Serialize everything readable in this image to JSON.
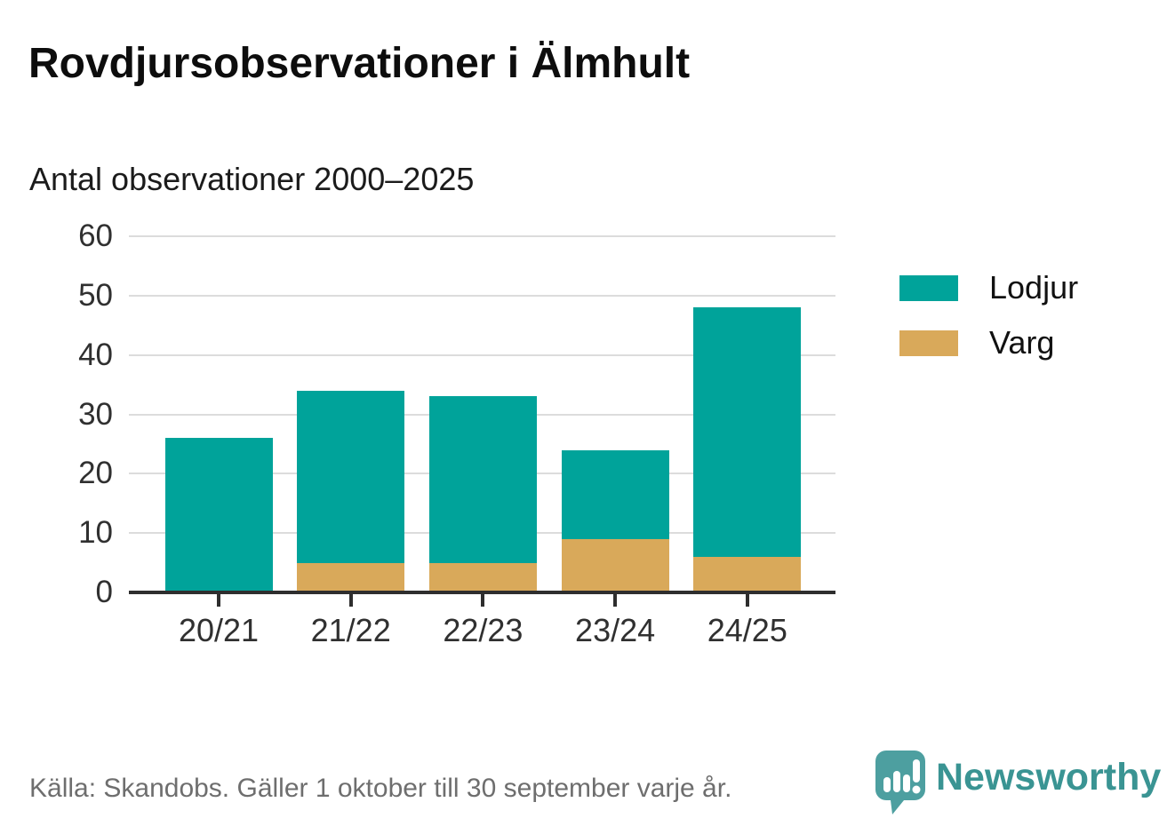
{
  "header": {
    "title": "Rovdjursobservationer i Älmhult",
    "subtitle": "Antal observationer 2000–2025"
  },
  "chart_data": {
    "type": "bar",
    "stacked": true,
    "title": "Rovdjursobservationer i Älmhult",
    "subtitle": "Antal observationer 2000–2025",
    "categories": [
      "20/21",
      "21/22",
      "22/23",
      "23/24",
      "24/25"
    ],
    "series": [
      {
        "name": "Lodjur",
        "color": "#00a39a",
        "values": [
          26,
          29,
          28,
          15,
          42
        ]
      },
      {
        "name": "Varg",
        "color": "#d9a95a",
        "values": [
          0,
          5,
          5,
          9,
          6
        ]
      }
    ],
    "stack_order_bottom_to_top": [
      "Varg",
      "Lodjur"
    ],
    "totals": [
      26,
      34,
      33,
      24,
      48
    ],
    "xlabel": "",
    "ylabel": "",
    "ylim": [
      0,
      60
    ],
    "yticks": [
      0,
      10,
      20,
      30,
      40,
      50,
      60
    ],
    "grid": true,
    "legend_position": "right"
  },
  "legend": {
    "items": [
      {
        "label": "Lodjur",
        "color": "#00a39a"
      },
      {
        "label": "Varg",
        "color": "#d9a95a"
      }
    ]
  },
  "footer": {
    "source": "Källa: Skandobs. Gäller 1 oktober till 30 september varje år.",
    "brand": "Newsworthy"
  },
  "colors": {
    "lodjur": "#00a39a",
    "varg": "#d9a95a",
    "gridline": "#dcdcdc",
    "axis": "#2e2e2e",
    "tick_label": "#303030",
    "footer_text": "#6e6e6e",
    "logo_bubble": "#4d9fa0",
    "logo_text": "#3a9493"
  }
}
